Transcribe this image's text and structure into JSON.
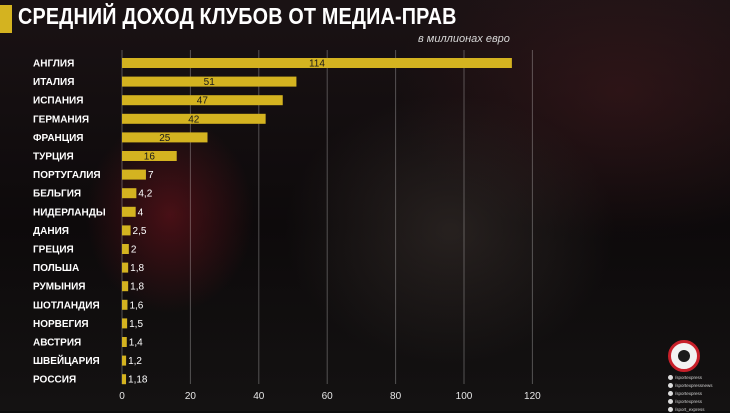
{
  "header": {
    "title": "СРЕДНИЙ ДОХОД КЛУБОВ ОТ МЕДИА-ПРАВ",
    "subtitle": "в миллионах евро"
  },
  "colors": {
    "bar": "#d4b320",
    "accent": "#d4b320",
    "logo_ring": "#c8202a"
  },
  "chart_data": {
    "type": "bar",
    "orientation": "horizontal",
    "title": "СРЕДНИЙ ДОХОД КЛУБОВ ОТ МЕДИА-ПРАВ",
    "subtitle": "в миллионах евро",
    "categories": [
      "АНГЛИЯ",
      "ИТАЛИЯ",
      "ИСПАНИЯ",
      "ГЕРМАНИЯ",
      "ФРАНЦИЯ",
      "ТУРЦИЯ",
      "ПОРТУГАЛИЯ",
      "БЕЛЬГИЯ",
      "НИДЕРЛАНДЫ",
      "ДАНИЯ",
      "ГРЕЦИЯ",
      "ПОЛЬША",
      "РУМЫНИЯ",
      "ШОТЛАНДИЯ",
      "НОРВЕГИЯ",
      "АВСТРИЯ",
      "ШВЕЙЦАРИЯ",
      "РОССИЯ"
    ],
    "values": [
      114,
      51,
      47,
      42,
      25,
      16,
      7,
      4.2,
      4,
      2.5,
      2,
      1.8,
      1.8,
      1.6,
      1.5,
      1.4,
      1.2,
      1.18
    ],
    "value_labels": [
      "114",
      "51",
      "47",
      "42",
      "25",
      "16",
      "7",
      "4,2",
      "4",
      "2,5",
      "2",
      "1,8",
      "1,8",
      "1,6",
      "1,5",
      "1,4",
      "1,2",
      "1,18"
    ],
    "xlim": [
      0,
      120
    ],
    "xticks": [
      0,
      20,
      40,
      60,
      80,
      100,
      120
    ],
    "grid": "vertical",
    "xlabel": "",
    "ylabel": ""
  },
  "branding": {
    "social_handles": [
      "/sportexpress",
      "/sportexpressnews",
      "/sportexpress",
      "/sportexpress",
      "/sport_express"
    ],
    "social_icons": [
      "vk-icon",
      "telegram-icon",
      "facebook-icon",
      "instagram-icon",
      "twitter-icon"
    ]
  }
}
